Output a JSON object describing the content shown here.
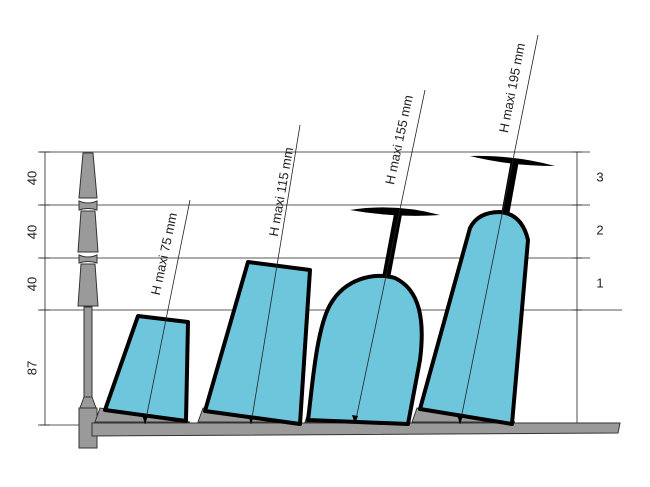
{
  "left_dimensions": [
    "40",
    "40",
    "40",
    "87"
  ],
  "glass_labels": [
    "H maxi 75 mm",
    "H maxi 115 mm",
    "H maxi 155 mm",
    "H maxi 195 mm"
  ],
  "levels": [
    "3",
    "2",
    "1"
  ]
}
